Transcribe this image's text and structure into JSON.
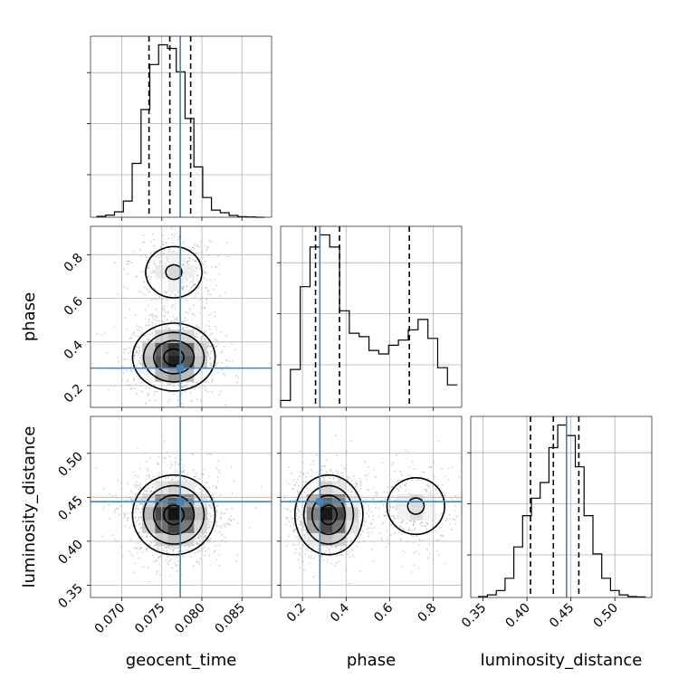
{
  "chart_data": {
    "type": "corner",
    "parameters": [
      "geocent_time",
      "phase",
      "luminosity_distance"
    ],
    "axes": {
      "geocent_time": {
        "label": "geocent_time",
        "range": [
          0.0661,
          0.0887
        ],
        "ticks": [
          0.07,
          0.075,
          0.08,
          0.085
        ],
        "tick_labels": [
          "0.070",
          "0.075",
          "0.080",
          "0.085"
        ]
      },
      "phase": {
        "label": "phase",
        "range": [
          0.1,
          0.93
        ],
        "ticks": [
          0.2,
          0.4,
          0.6,
          0.8
        ],
        "tick_labels": [
          "0.2",
          "0.4",
          "0.6",
          "0.8"
        ]
      },
      "luminosity_distance": {
        "label": "luminosity_distance",
        "range": [
          0.336,
          0.542
        ],
        "ticks": [
          0.35,
          0.4,
          0.45,
          0.5
        ],
        "tick_labels": [
          "0.35",
          "0.40",
          "0.45",
          "0.50"
        ]
      }
    },
    "truths": {
      "geocent_time": 0.0773,
      "phase": 0.28,
      "luminosity_distance": 0.445
    },
    "quantiles": {
      "geocent_time": [
        0.0734,
        0.076,
        0.0786
      ],
      "phase": [
        0.26,
        0.37,
        0.69
      ],
      "luminosity_distance": [
        0.404,
        0.43,
        0.459
      ]
    },
    "histograms": {
      "geocent_time": {
        "edges": [
          0.0669,
          0.068,
          0.0691,
          0.0702,
          0.0713,
          0.0724,
          0.0735,
          0.0746,
          0.0757,
          0.0768,
          0.0779,
          0.079,
          0.0801,
          0.0812,
          0.0823,
          0.0834,
          0.0845,
          0.0856,
          0.0867,
          0.0878
        ],
        "counts": [
          0.5,
          1.2,
          3.0,
          9.0,
          30.0,
          60.0,
          85.0,
          96.0,
          94.0,
          81.0,
          55.0,
          28.0,
          11.0,
          4.0,
          2.5,
          1.0,
          0.3,
          0.2,
          0
        ]
      },
      "phase": {
        "edges": [
          0.1,
          0.145,
          0.19,
          0.235,
          0.28,
          0.325,
          0.37,
          0.415,
          0.46,
          0.505,
          0.55,
          0.595,
          0.64,
          0.685,
          0.73,
          0.775,
          0.82,
          0.865,
          0.91
        ],
        "counts": [
          4,
          22,
          70,
          93,
          100,
          93,
          56,
          43,
          41,
          33,
          31,
          36,
          39,
          45,
          51,
          40,
          23,
          13
        ]
      },
      "luminosity_distance": {
        "edges": [
          0.345,
          0.355,
          0.365,
          0.375,
          0.385,
          0.395,
          0.405,
          0.415,
          0.425,
          0.435,
          0.445,
          0.455,
          0.465,
          0.475,
          0.485,
          0.495,
          0.505,
          0.515,
          0.525,
          0.535
        ],
        "counts": [
          0.5,
          1.5,
          4,
          11,
          29,
          47,
          57,
          66,
          86,
          99,
          93,
          75,
          47,
          25,
          11,
          4,
          1.5,
          0.5,
          0.3
        ]
      }
    },
    "density_2d": [
      {
        "x": "geocent_time",
        "y": "phase",
        "modes": [
          {
            "cx": 0.0765,
            "cy": 0.33,
            "sx": 0.0025,
            "sy": 0.075,
            "w": 1.0
          },
          {
            "cx": 0.0765,
            "cy": 0.72,
            "sx": 0.0024,
            "sy": 0.08,
            "w": 0.35
          }
        ]
      },
      {
        "x": "geocent_time",
        "y": "luminosity_distance",
        "modes": [
          {
            "cx": 0.0765,
            "cy": 0.43,
            "sx": 0.0025,
            "sy": 0.022,
            "w": 1.0
          }
        ]
      },
      {
        "x": "phase",
        "y": "luminosity_distance",
        "modes": [
          {
            "cx": 0.32,
            "cy": 0.43,
            "sx": 0.075,
            "sy": 0.022,
            "w": 1.0
          },
          {
            "cx": 0.72,
            "cy": 0.44,
            "sx": 0.09,
            "sy": 0.022,
            "w": 0.35
          }
        ]
      }
    ],
    "truth_color": "#4682b4",
    "grid": true
  }
}
